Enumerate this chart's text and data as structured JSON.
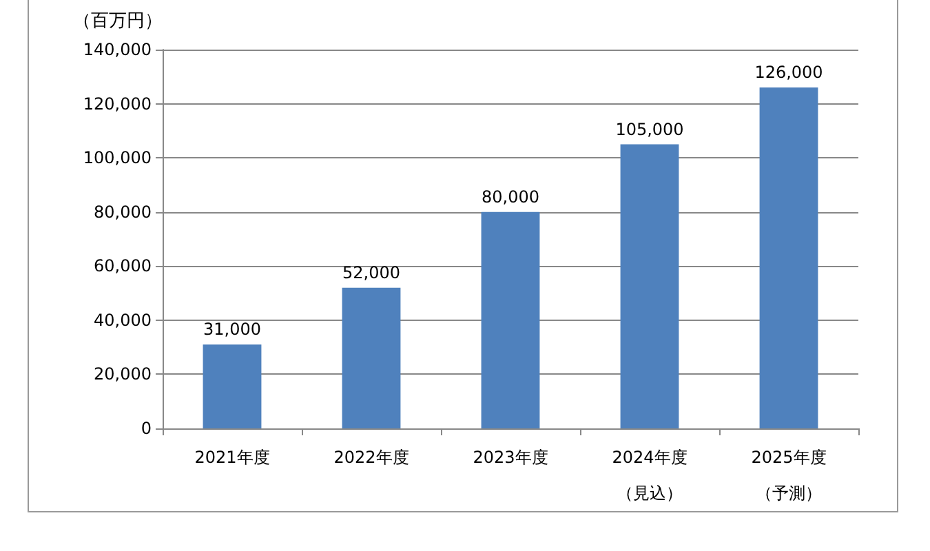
{
  "chart_data": {
    "type": "bar",
    "ylabel": "（百万円）",
    "categories": [
      "2021年度",
      "2022年度",
      "2023年度",
      "2024年度（見込）",
      "2025年度（予測）"
    ],
    "values": [
      31000,
      52000,
      80000,
      105000,
      126000
    ],
    "color": "#4f81bd",
    "value_labels": [
      "31,000",
      "52,000",
      "80,000",
      "105,000",
      "126,000"
    ],
    "ylim": [
      0,
      140000
    ],
    "yticks": [
      0,
      {
        "value": 20000,
        "label": "20,000"
      },
      {
        "value": 40000,
        "label": "40,000"
      },
      {
        "value": 60000,
        "label": "60,000"
      },
      {
        "value": 80000,
        "label": "80,000"
      },
      {
        "value": 100000,
        "label": "100,000"
      },
      {
        "value": 120000,
        "label": "120,000"
      },
      {
        "value": 140000,
        "label": "140,000"
      }
    ],
    "grid": "y"
  }
}
